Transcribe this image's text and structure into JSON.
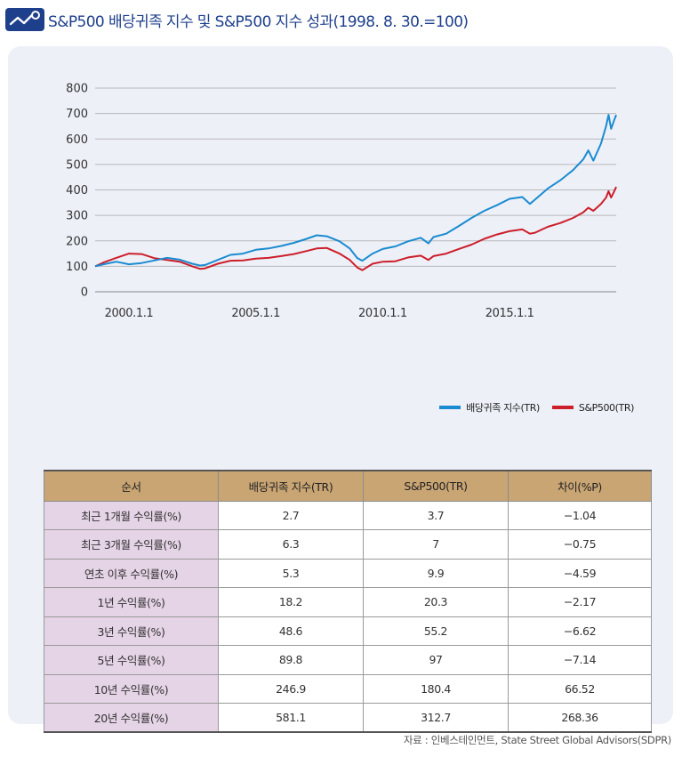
{
  "header": {
    "title": "S&P500 배당귀족 지수 및 S&P500 지수 성과(1998. 8. 30.=100)"
  },
  "chart_data": {
    "type": "line",
    "x_ticks": [
      "2000.1.1",
      "2005.1.1",
      "2010.1.1",
      "2015.1.1"
    ],
    "x_tick_years": [
      2000,
      2005,
      2010,
      2015
    ],
    "x_range": [
      1998.67,
      2019.2
    ],
    "ylim": [
      0,
      800
    ],
    "y_ticks": [
      0,
      100,
      200,
      300,
      400,
      500,
      600,
      700,
      800
    ],
    "grid": "horizontal",
    "legend_position": "bottom-right",
    "series": [
      {
        "name": "배당귀족 지수(TR)",
        "color": "#1a8bd0",
        "points": [
          [
            1998.67,
            100
          ],
          [
            1999.0,
            108
          ],
          [
            1999.5,
            118
          ],
          [
            2000.0,
            108
          ],
          [
            2000.5,
            113
          ],
          [
            2001.0,
            123
          ],
          [
            2001.5,
            133
          ],
          [
            2002.0,
            126
          ],
          [
            2002.5,
            110
          ],
          [
            2002.8,
            103
          ],
          [
            2003.0,
            105
          ],
          [
            2003.5,
            125
          ],
          [
            2004.0,
            145
          ],
          [
            2004.5,
            150
          ],
          [
            2005.0,
            165
          ],
          [
            2005.5,
            170
          ],
          [
            2006.0,
            180
          ],
          [
            2006.5,
            192
          ],
          [
            2007.0,
            208
          ],
          [
            2007.4,
            222
          ],
          [
            2007.8,
            218
          ],
          [
            2008.3,
            198
          ],
          [
            2008.7,
            170
          ],
          [
            2009.0,
            132
          ],
          [
            2009.2,
            122
          ],
          [
            2009.6,
            150
          ],
          [
            2010.0,
            168
          ],
          [
            2010.5,
            178
          ],
          [
            2011.0,
            198
          ],
          [
            2011.5,
            212
          ],
          [
            2011.8,
            190
          ],
          [
            2012.0,
            215
          ],
          [
            2012.5,
            228
          ],
          [
            2013.0,
            258
          ],
          [
            2013.5,
            290
          ],
          [
            2014.0,
            318
          ],
          [
            2014.5,
            340
          ],
          [
            2015.0,
            365
          ],
          [
            2015.5,
            372
          ],
          [
            2015.8,
            345
          ],
          [
            2016.0,
            362
          ],
          [
            2016.5,
            405
          ],
          [
            2017.0,
            438
          ],
          [
            2017.5,
            478
          ],
          [
            2017.9,
            520
          ],
          [
            2018.1,
            555
          ],
          [
            2018.3,
            515
          ],
          [
            2018.6,
            582
          ],
          [
            2018.8,
            650
          ],
          [
            2018.9,
            695
          ],
          [
            2019.0,
            640
          ],
          [
            2019.1,
            668
          ],
          [
            2019.2,
            695
          ]
        ]
      },
      {
        "name": "S&P500(TR)",
        "color": "#cc1f2a",
        "points": [
          [
            1998.67,
            100
          ],
          [
            1999.0,
            115
          ],
          [
            1999.5,
            133
          ],
          [
            2000.0,
            150
          ],
          [
            2000.5,
            148
          ],
          [
            2001.0,
            132
          ],
          [
            2001.5,
            125
          ],
          [
            2002.0,
            118
          ],
          [
            2002.5,
            100
          ],
          [
            2002.8,
            90
          ],
          [
            2003.0,
            92
          ],
          [
            2003.5,
            110
          ],
          [
            2004.0,
            122
          ],
          [
            2004.5,
            123
          ],
          [
            2005.0,
            130
          ],
          [
            2005.5,
            133
          ],
          [
            2006.0,
            140
          ],
          [
            2006.5,
            148
          ],
          [
            2007.0,
            160
          ],
          [
            2007.4,
            170
          ],
          [
            2007.8,
            172
          ],
          [
            2008.3,
            150
          ],
          [
            2008.7,
            125
          ],
          [
            2009.0,
            95
          ],
          [
            2009.2,
            85
          ],
          [
            2009.6,
            110
          ],
          [
            2010.0,
            118
          ],
          [
            2010.5,
            120
          ],
          [
            2011.0,
            135
          ],
          [
            2011.5,
            142
          ],
          [
            2011.8,
            125
          ],
          [
            2012.0,
            140
          ],
          [
            2012.5,
            150
          ],
          [
            2013.0,
            168
          ],
          [
            2013.5,
            185
          ],
          [
            2014.0,
            208
          ],
          [
            2014.5,
            225
          ],
          [
            2015.0,
            238
          ],
          [
            2015.5,
            245
          ],
          [
            2015.8,
            228
          ],
          [
            2016.0,
            232
          ],
          [
            2016.5,
            255
          ],
          [
            2017.0,
            270
          ],
          [
            2017.5,
            290
          ],
          [
            2017.9,
            312
          ],
          [
            2018.1,
            330
          ],
          [
            2018.3,
            318
          ],
          [
            2018.6,
            345
          ],
          [
            2018.8,
            370
          ],
          [
            2018.9,
            395
          ],
          [
            2019.0,
            370
          ],
          [
            2019.1,
            390
          ],
          [
            2019.2,
            412
          ]
        ]
      }
    ]
  },
  "table": {
    "headers": [
      "순서",
      "배당귀족 지수(TR)",
      "S&P500(TR)",
      "차이(%P)"
    ],
    "rows": [
      [
        "최근 1개월 수익률(%)",
        "2.7",
        "3.7",
        "−1.04"
      ],
      [
        "최근 3개월 수익률(%)",
        "6.3",
        "7",
        "−0.75"
      ],
      [
        "연초 이후 수익률(%)",
        "5.3",
        "9.9",
        "−4.59"
      ],
      [
        "1년 수익률(%)",
        "18.2",
        "20.3",
        "−2.17"
      ],
      [
        "3년 수익률(%)",
        "48.6",
        "55.2",
        "−6.62"
      ],
      [
        "5년 수익률(%)",
        "89.8",
        "97",
        "−7.14"
      ],
      [
        "10년 수익률(%)",
        "246.9",
        "180.4",
        "66.52"
      ],
      [
        "20년 수익률(%)",
        "581.1",
        "312.7",
        "268.36"
      ]
    ]
  },
  "source": "자료 : 인베스테인먼트, State Street Global Advisors(SDPR)"
}
